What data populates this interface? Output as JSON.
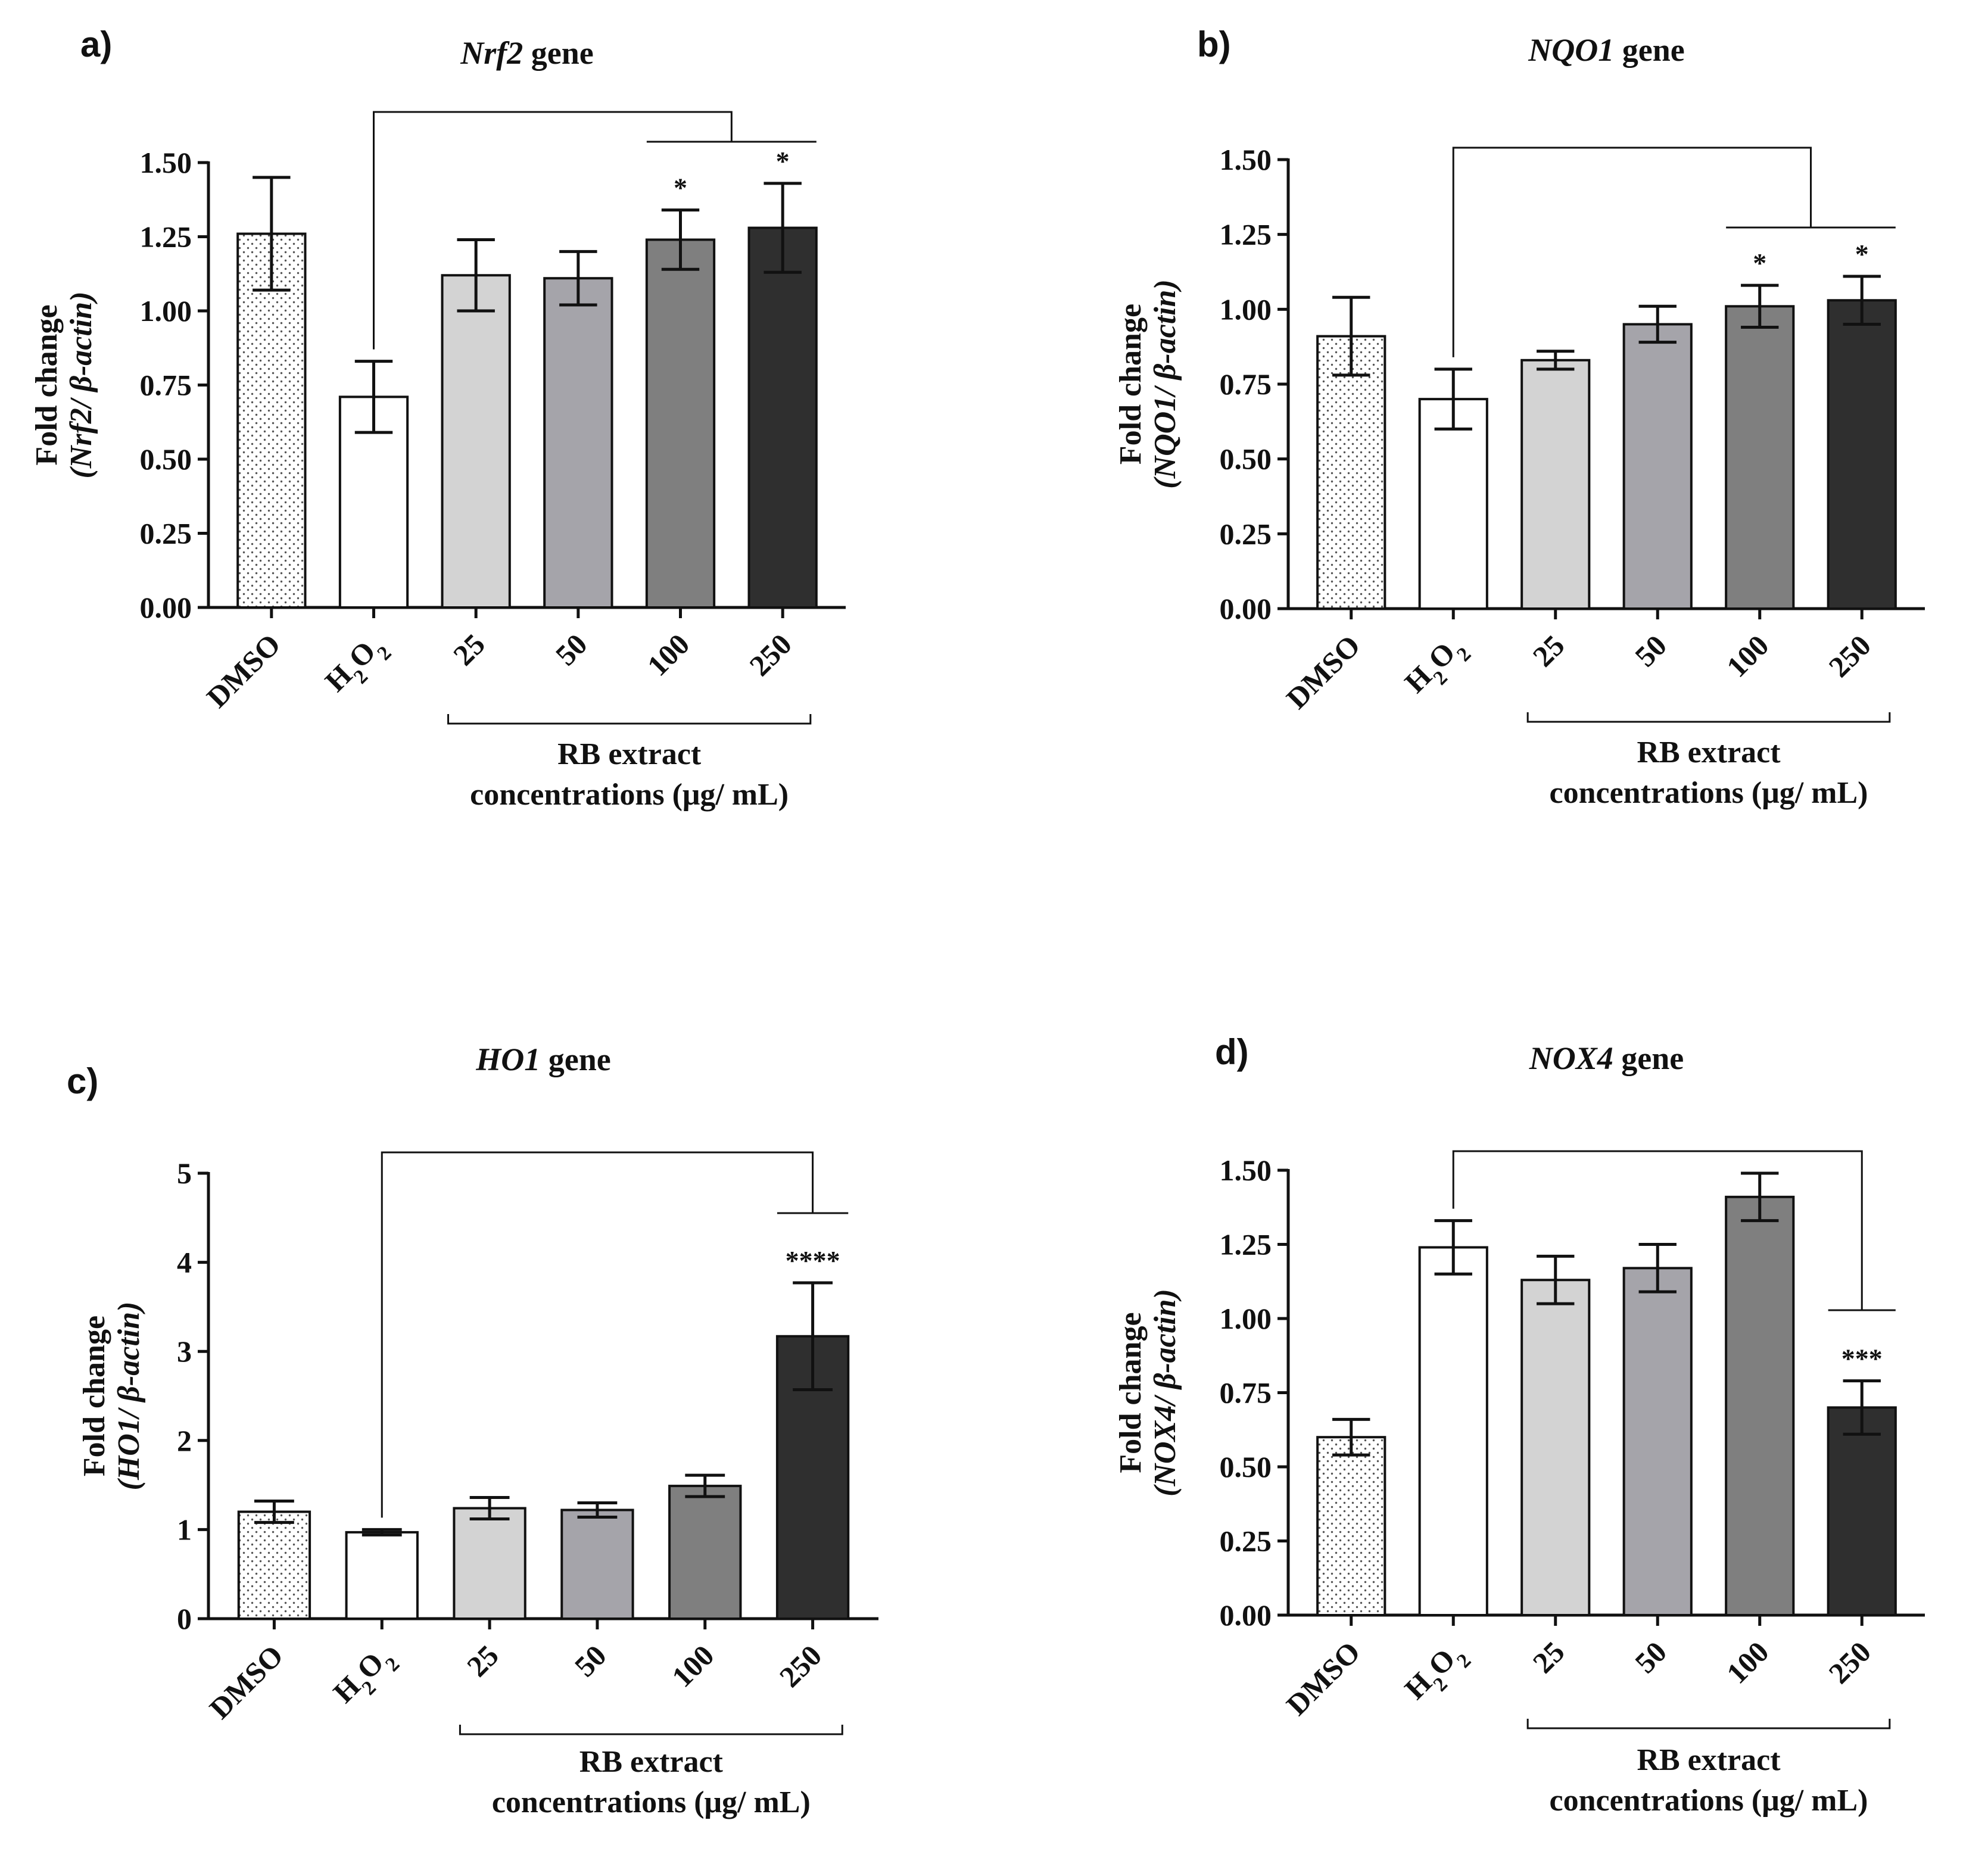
{
  "chart_data": [
    {
      "type": "bar",
      "panel": "a)",
      "title_italic": "Nrf2",
      "title_rest": " gene",
      "ylabel_line1": "Fold change",
      "ylabel_line2": "(Nrf2/ β-actin)",
      "ylim": [
        0,
        1.5
      ],
      "yticks": [
        "0.00",
        "0.25",
        "0.50",
        "0.75",
        "1.00",
        "1.25",
        "1.50"
      ],
      "categories": [
        "DMSO",
        "H2O2",
        "25",
        "50",
        "100",
        "250"
      ],
      "values": [
        1.26,
        0.71,
        1.12,
        1.11,
        1.24,
        1.28
      ],
      "errors": [
        0.19,
        0.12,
        0.12,
        0.09,
        0.1,
        0.15
      ],
      "colors": [
        "dots",
        "#ffffff",
        "#d3d3d3",
        "#a5a4aa",
        "#7f7f7f",
        "#2f2f2f"
      ],
      "significance": [
        "",
        "",
        "",
        "",
        "*",
        "*"
      ],
      "group_label_line1": "RB extract",
      "group_label_line2": "concentrations (μg/ mL)"
    },
    {
      "type": "bar",
      "panel": "b)",
      "title_italic": "NQO1",
      "title_rest": " gene",
      "ylabel_line1": "Fold change",
      "ylabel_line2": "(NQO1/ β-actin)",
      "ylim": [
        0,
        1.5
      ],
      "yticks": [
        "0.00",
        "0.25",
        "0.50",
        "0.75",
        "1.00",
        "1.25",
        "1.50"
      ],
      "categories": [
        "DMSO",
        "H2O2",
        "25",
        "50",
        "100",
        "250"
      ],
      "values": [
        0.91,
        0.7,
        0.83,
        0.95,
        1.01,
        1.03
      ],
      "errors": [
        0.13,
        0.1,
        0.03,
        0.06,
        0.07,
        0.08
      ],
      "colors": [
        "dots",
        "#ffffff",
        "#d3d3d3",
        "#a5a4aa",
        "#7f7f7f",
        "#2f2f2f"
      ],
      "significance": [
        "",
        "",
        "",
        "",
        "*",
        "*"
      ],
      "group_label_line1": "RB extract",
      "group_label_line2": "concentrations (μg/ mL)"
    },
    {
      "type": "bar",
      "panel": "c)",
      "title_italic": "HO1",
      "title_rest": " gene",
      "ylabel_line1": "Fold change",
      "ylabel_line2": "(HO1/ β-actin)",
      "ylim": [
        0,
        5
      ],
      "yticks": [
        "0",
        "1",
        "2",
        "3",
        "4",
        "5"
      ],
      "categories": [
        "DMSO",
        "H2O2",
        "25",
        "50",
        "100",
        "250"
      ],
      "values": [
        1.2,
        0.97,
        1.24,
        1.22,
        1.49,
        3.17
      ],
      "errors": [
        0.12,
        0.03,
        0.12,
        0.08,
        0.12,
        0.6
      ],
      "colors": [
        "dots",
        "#ffffff",
        "#d3d3d3",
        "#a5a4aa",
        "#7f7f7f",
        "#2f2f2f"
      ],
      "significance": [
        "",
        "",
        "",
        "",
        "",
        "****"
      ],
      "group_label_line1": "RB extract",
      "group_label_line2": "concentrations (μg/ mL)"
    },
    {
      "type": "bar",
      "panel": "d)",
      "title_italic": "NOX4",
      "title_rest": " gene",
      "ylabel_line1": "Fold change",
      "ylabel_line2": "(NOX4/ β-actin)",
      "ylim": [
        0,
        1.5
      ],
      "yticks": [
        "0.00",
        "0.25",
        "0.50",
        "0.75",
        "1.00",
        "1.25",
        "1.50"
      ],
      "categories": [
        "DMSO",
        "H2O2",
        "25",
        "50",
        "100",
        "250"
      ],
      "values": [
        0.6,
        1.24,
        1.13,
        1.17,
        1.41,
        0.7
      ],
      "errors": [
        0.06,
        0.09,
        0.08,
        0.08,
        0.08,
        0.09
      ],
      "colors": [
        "dots",
        "#ffffff",
        "#d3d3d3",
        "#a5a4aa",
        "#7f7f7f",
        "#2f2f2f"
      ],
      "significance": [
        "",
        "",
        "",
        "",
        "",
        "***"
      ],
      "group_label_line1": "RB extract",
      "group_label_line2": "concentrations (μg/ mL)"
    }
  ]
}
